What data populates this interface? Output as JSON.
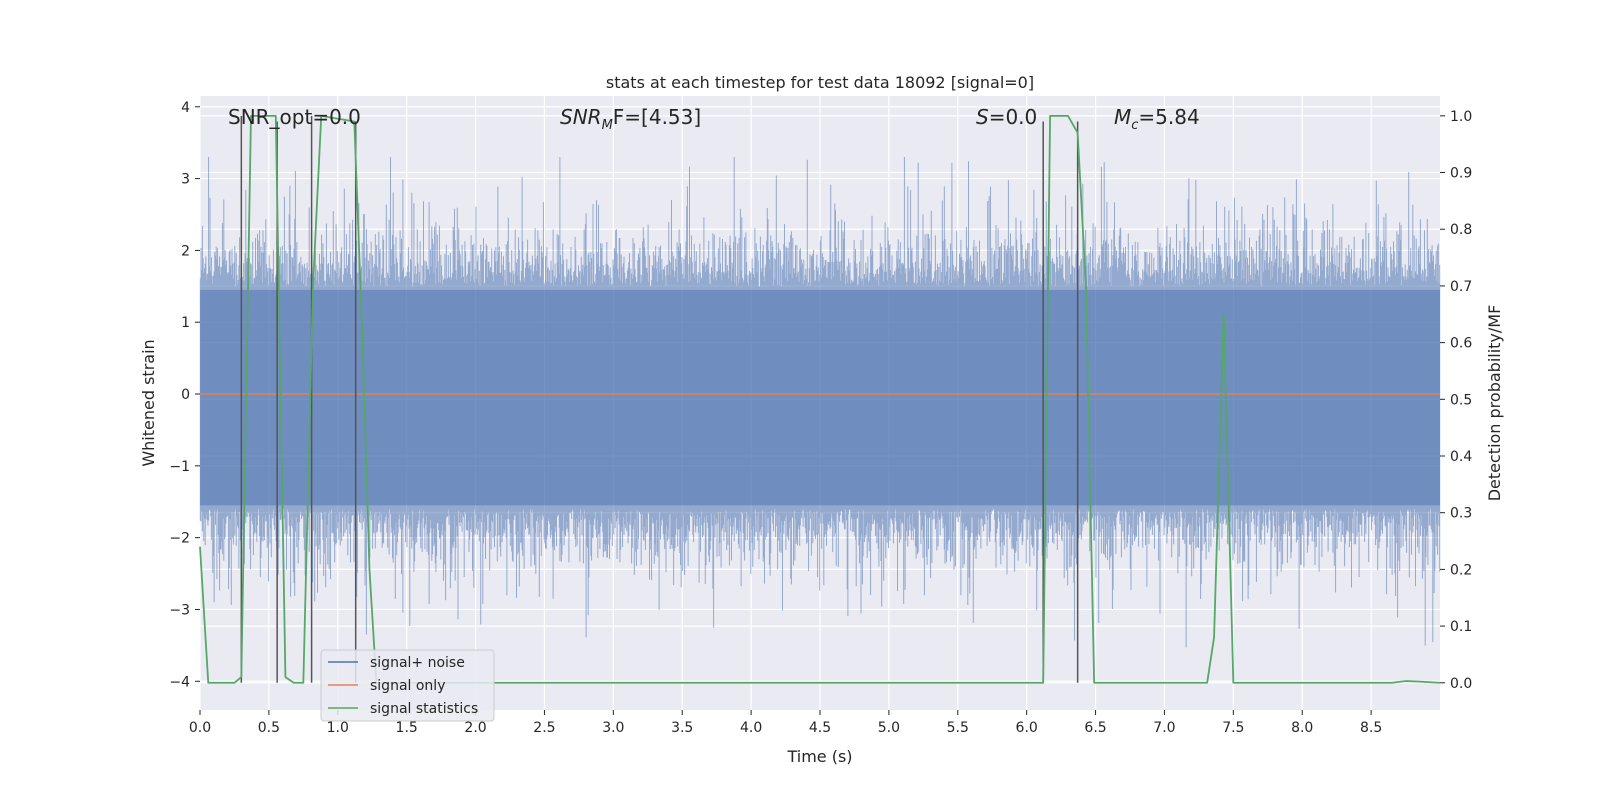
{
  "chart_data": {
    "type": "line",
    "title": "stats at each timestep for test data 18092 [signal=0]",
    "xlabel": "Time (s)",
    "ylabel": "Whitened strain",
    "y2label": "Detection probability/MF",
    "xlim": [
      0.0,
      9.0
    ],
    "ylim": [
      -4.4,
      4.15
    ],
    "y2lim": [
      -0.048,
      1.035
    ],
    "xticks": [
      0.0,
      0.5,
      1.0,
      1.5,
      2.0,
      2.5,
      3.0,
      3.5,
      4.0,
      4.5,
      5.0,
      5.5,
      6.0,
      6.5,
      7.0,
      7.5,
      8.0,
      8.5
    ],
    "xtick_labels": [
      "0.0",
      "0.5",
      "1.0",
      "1.5",
      "2.0",
      "2.5",
      "3.0",
      "3.5",
      "4.0",
      "4.5",
      "5.0",
      "5.5",
      "6.0",
      "6.5",
      "7.0",
      "7.5",
      "8.0",
      "8.5"
    ],
    "yticks": [
      -4,
      -3,
      -2,
      -1,
      0,
      1,
      2,
      3,
      4
    ],
    "ytick_labels": [
      "−4",
      "−3",
      "−2",
      "−1",
      "0",
      "1",
      "2",
      "3",
      "4"
    ],
    "y2ticks": [
      0.0,
      0.1,
      0.2,
      0.3,
      0.4,
      0.5,
      0.6,
      0.7,
      0.8,
      0.9,
      1.0
    ],
    "y2tick_labels": [
      "0.0",
      "0.1",
      "0.2",
      "0.3",
      "0.4",
      "0.5",
      "0.6",
      "0.7",
      "0.8",
      "0.9",
      "1.0"
    ],
    "grid": true,
    "legend_position": "lower-left",
    "series": [
      {
        "name": "signal+ noise",
        "color": "#4c72b0",
        "kind": "whitened noise, approx. range -4 to 3.3, typical envelope -1.7 to 1.5"
      },
      {
        "name": "signal only",
        "color": "#dd8452",
        "x": [
          0.0,
          9.0
        ],
        "y": [
          0.0,
          0.0
        ]
      },
      {
        "name": "signal statistics",
        "color": "#55a868",
        "axis": "right",
        "x": [
          0.0,
          0.06,
          0.25,
          0.3,
          0.37,
          0.55,
          0.62,
          0.68,
          0.75,
          0.82,
          0.88,
          1.12,
          1.18,
          1.23,
          1.28,
          6.12,
          6.17,
          6.3,
          6.37,
          6.43,
          6.49,
          7.31,
          7.36,
          7.43,
          7.5,
          8.65,
          8.75,
          8.85,
          9.0
        ],
        "y": [
          0.24,
          0.0,
          0.0,
          0.01,
          1.0,
          1.0,
          0.01,
          0.0,
          0.0,
          0.7,
          1.0,
          0.99,
          0.6,
          0.2,
          0.0,
          0.0,
          1.0,
          1.0,
          0.97,
          0.7,
          0.0,
          0.0,
          0.08,
          0.65,
          0.0,
          0.0,
          0.003,
          0.002,
          0.0
        ]
      }
    ],
    "vlines": [
      {
        "x": 0.3,
        "y2_range": [
          0.0,
          1.0
        ]
      },
      {
        "x": 0.56,
        "y2_range": [
          0.0,
          0.99
        ]
      },
      {
        "x": 0.81,
        "y2_range": [
          0.0,
          1.0
        ]
      },
      {
        "x": 1.13,
        "y2_range": [
          0.0,
          0.99
        ]
      },
      {
        "x": 6.12,
        "y2_range": [
          0.0,
          0.99
        ]
      },
      {
        "x": 6.37,
        "y2_range": [
          0.0,
          0.99
        ]
      }
    ],
    "annotations": [
      {
        "text": "SNR_opt=0.0"
      },
      {
        "text": "SNR",
        "sub": "M",
        "after": "F=[4.53]"
      },
      {
        "text": "S",
        "after": "=0.0"
      },
      {
        "text": "M",
        "sub": "c",
        "after": "=5.84"
      }
    ]
  }
}
